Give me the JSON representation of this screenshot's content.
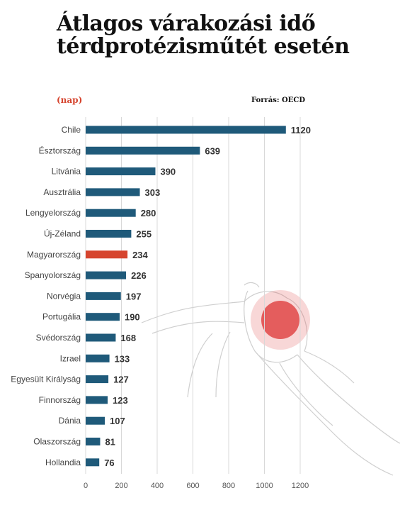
{
  "header": {
    "title": "Átlagos várakozási idő térdprotézisműtét esetén",
    "unit": "(nap)",
    "source": "Forrás: OECD"
  },
  "colors": {
    "bar": "#1f5a7a",
    "highlight": "#d6452f",
    "grid": "#d8d8d8"
  },
  "chart_data": {
    "type": "bar",
    "orientation": "horizontal",
    "title": "Átlagos várakozási idő térdprotézisműtét esetén",
    "xlabel": "",
    "ylabel": "",
    "unit": "(nap)",
    "categories": [
      "Chile",
      "Észtország",
      "Litvánia",
      "Ausztrália",
      "Lengyelország",
      "Új-Zéland",
      "Magyarország",
      "Spanyolország",
      "Norvégia",
      "Portugália",
      "Svédország",
      "Izrael",
      "Egyesült Királyság",
      "Finnország",
      "Dánia",
      "Olaszország",
      "Hollandia"
    ],
    "values": [
      1120,
      639,
      390,
      303,
      280,
      255,
      234,
      226,
      197,
      190,
      168,
      133,
      127,
      123,
      107,
      81,
      76
    ],
    "highlight": "Magyarország",
    "xlim": [
      0,
      1200
    ],
    "xticks": [
      0,
      200,
      400,
      600,
      800,
      1000,
      1200
    ],
    "grid": true
  }
}
